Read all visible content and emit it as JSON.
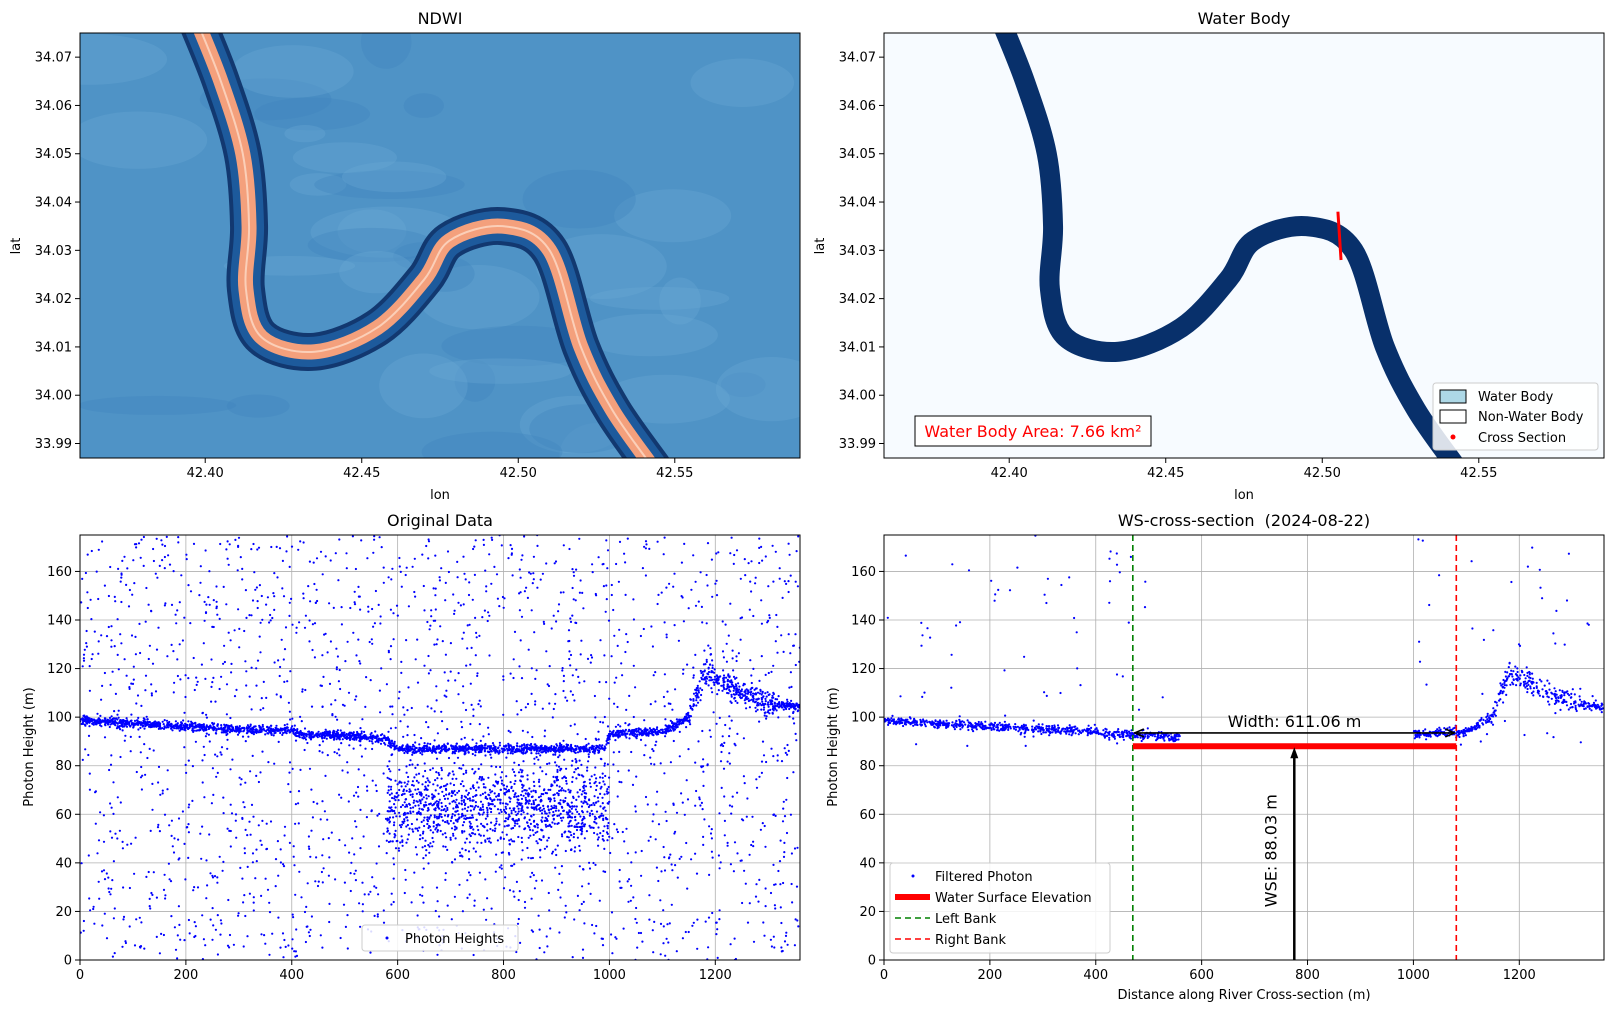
{
  "chart_data": [
    {
      "type": "heatmap",
      "title": "NDWI",
      "xlabel": "lon",
      "ylabel": "lat",
      "xlim": [
        42.36,
        42.59
      ],
      "ylim": [
        33.987,
        34.075
      ],
      "xticks": [
        "42.40",
        "42.45",
        "42.50",
        "42.55"
      ],
      "yticks": [
        "33.99",
        "34.00",
        "34.01",
        "34.02",
        "34.03",
        "34.04",
        "34.05",
        "34.06",
        "34.07"
      ],
      "colormap": "blue background with orange-red river channel",
      "colors": {
        "background": "#4f93c6",
        "edge": "#0b2f66",
        "water": "#f4a07c"
      },
      "river_centerline": [
        [
          42.397,
          34.078
        ],
        [
          42.405,
          34.065
        ],
        [
          42.412,
          34.05
        ],
        [
          42.414,
          34.035
        ],
        [
          42.413,
          34.022
        ],
        [
          42.418,
          34.012
        ],
        [
          42.435,
          34.009
        ],
        [
          42.455,
          34.014
        ],
        [
          42.47,
          34.024
        ],
        [
          42.478,
          34.032
        ],
        [
          42.495,
          34.035
        ],
        [
          42.51,
          34.03
        ],
        [
          42.52,
          34.01
        ],
        [
          42.53,
          33.997
        ],
        [
          42.543,
          33.985
        ]
      ]
    },
    {
      "type": "heatmap",
      "title": "Water Body",
      "xlabel": "lon",
      "ylabel": "lat",
      "xlim": [
        42.36,
        42.59
      ],
      "ylim": [
        33.987,
        34.075
      ],
      "xticks": [
        "42.40",
        "42.45",
        "42.50",
        "42.55"
      ],
      "yticks": [
        "33.99",
        "34.00",
        "34.01",
        "34.02",
        "34.03",
        "34.04",
        "34.05",
        "34.06",
        "34.07"
      ],
      "colors": {
        "water": "#08306b",
        "background": "#f7fbff",
        "cross_section": "#ff0000"
      },
      "annotation": "Water Body Area: 7.66 km²",
      "cross_section": [
        [
          42.505,
          34.038
        ],
        [
          42.506,
          34.028
        ]
      ],
      "legend": [
        "Water Body",
        "Non-Water Body",
        "Cross Section"
      ],
      "legend_loc": "lower right"
    },
    {
      "type": "scatter",
      "title": "Original Data",
      "xlabel": "",
      "ylabel": "Photon Height (m)",
      "xlim": [
        0,
        1360
      ],
      "ylim": [
        0,
        175
      ],
      "xticks": [
        "0",
        "200",
        "400",
        "600",
        "800",
        "1000",
        "1200"
      ],
      "yticks": [
        "0",
        "20",
        "40",
        "60",
        "80",
        "100",
        "120",
        "140",
        "160"
      ],
      "grid": true,
      "legend": [
        "Photon Heights"
      ],
      "legend_loc": "lower center",
      "series_color": "#0000ff",
      "surface_profile": [
        [
          0,
          98.5
        ],
        [
          100,
          97.5
        ],
        [
          200,
          96
        ],
        [
          300,
          95
        ],
        [
          400,
          94.5
        ],
        [
          420,
          93
        ],
        [
          500,
          92.5
        ],
        [
          580,
          91
        ],
        [
          600,
          87
        ],
        [
          800,
          87
        ],
        [
          990,
          87
        ],
        [
          1000,
          93
        ],
        [
          1100,
          94
        ],
        [
          1150,
          100
        ],
        [
          1180,
          118
        ],
        [
          1200,
          116
        ],
        [
          1250,
          110
        ],
        [
          1300,
          106
        ],
        [
          1360,
          104
        ]
      ],
      "noise_cluster": {
        "x": [
          580,
          1000
        ],
        "y_center": 63,
        "spread": 9
      }
    },
    {
      "type": "scatter",
      "title": "WS-cross-section  (2024-08-22)",
      "xlabel": "Distance along River Cross-section (m)",
      "ylabel": "Photon Height (m)",
      "xlim": [
        0,
        1360
      ],
      "ylim": [
        0,
        175
      ],
      "xticks": [
        "0",
        "200",
        "400",
        "600",
        "800",
        "1000",
        "1200"
      ],
      "yticks": [
        "0",
        "20",
        "40",
        "60",
        "80",
        "100",
        "120",
        "140",
        "160"
      ],
      "grid": true,
      "left_bank": 470,
      "right_bank": 1081,
      "wse": 88.03,
      "width": 611.06,
      "width_label": "Width: 611.06 m",
      "wse_label": "WSE: 88.03 m",
      "wse_arrow_x": 775,
      "legend": [
        "Filtered Photon",
        "Water Surface Elevation",
        "Left Bank",
        "Right Bank"
      ],
      "legend_loc": "lower left",
      "colors": {
        "photon": "#0000ff",
        "wse": "#ff0000",
        "left_bank": "#008000",
        "right_bank": "#ff0000"
      }
    }
  ]
}
